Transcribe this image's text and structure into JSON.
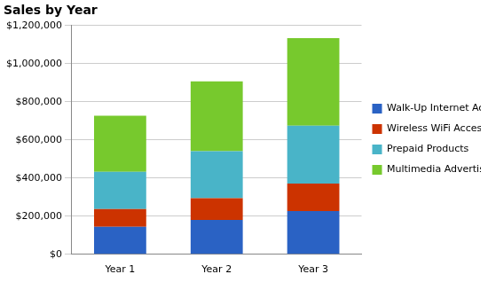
{
  "chart_data": {
    "type": "bar",
    "title": "Sales by Year",
    "categories": [
      "Year 1",
      "Year 2",
      "Year 3"
    ],
    "series": [
      {
        "name": "Walk-Up Internet Access",
        "color": "#2a62c4",
        "values": [
          144000,
          180000,
          227000
        ]
      },
      {
        "name": "Wireless WiFi Access",
        "color": "#cc3300",
        "values": [
          93000,
          114000,
          144000
        ]
      },
      {
        "name": "Prepaid Products",
        "color": "#49b4c8",
        "values": [
          196000,
          247000,
          304000
        ]
      },
      {
        "name": "Multimedia Advertising",
        "color": "#77c92d",
        "values": [
          294000,
          366000,
          459000
        ]
      }
    ],
    "ylim": [
      0,
      1200000
    ],
    "yticks": [
      {
        "value": 0,
        "label": "$0"
      },
      {
        "value": 200000,
        "label": "$200,000"
      },
      {
        "value": 400000,
        "label": "$400,000"
      },
      {
        "value": 600000,
        "label": "$600,000"
      },
      {
        "value": 800000,
        "label": "$800,000"
      },
      {
        "value": 1000000,
        "label": "$1,000,000"
      },
      {
        "value": 1200000,
        "label": "$1,200,000"
      }
    ],
    "stacked": true,
    "grid": true,
    "legend": "right"
  }
}
